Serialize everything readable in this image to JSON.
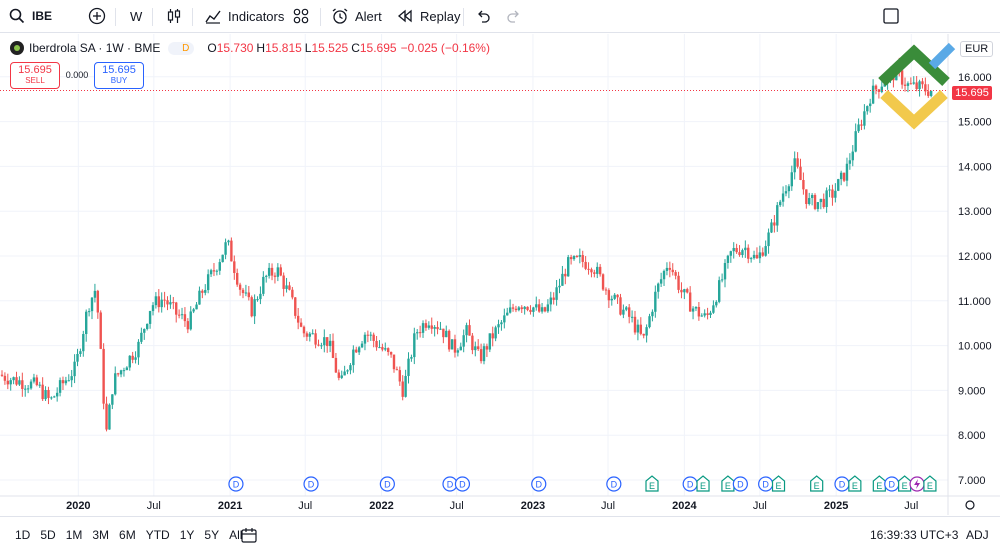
{
  "toolbar": {
    "symbol": "IBE",
    "interval": "W",
    "indicators": "Indicators",
    "alert": "Alert",
    "replay": "Replay"
  },
  "legend": {
    "name": "Iberdrola SA · 1W · BME",
    "badge": "D",
    "o_label": "O",
    "o": "15.730",
    "h_label": "H",
    "h": "15.815",
    "l_label": "L",
    "l": "15.525",
    "c_label": "C",
    "c": "15.695",
    "change": "−0.025 (−0.16%)"
  },
  "trade": {
    "sell_price": "15.695",
    "sell_label": "SELL",
    "spread": "0.000",
    "buy_price": "15.695",
    "buy_label": "BUY"
  },
  "currency": "EUR",
  "last_price_tag": "15.695",
  "bottom": {
    "ranges": [
      "1D",
      "5D",
      "1M",
      "3M",
      "6M",
      "YTD",
      "1Y",
      "5Y",
      "All"
    ],
    "clock": "16:39:33 UTC+3",
    "adj": "ADJ"
  },
  "colors": {
    "up": "#26a69a",
    "down": "#ef5350",
    "grid": "#f0f3fa",
    "dividend": "#2962ff",
    "earnings": "#089981",
    "split": "#9c27b0",
    "last_price": "#f23645"
  },
  "chart_data": {
    "type": "candlestick",
    "title": "Iberdrola SA · 1W · BME",
    "ylim": [
      7.0,
      16.45
    ],
    "yticks": [
      "7.000",
      "8.000",
      "9.000",
      "10.000",
      "11.000",
      "12.000",
      "13.000",
      "14.000",
      "15.000",
      "16.000"
    ],
    "xticks": [
      "2020",
      "Jul",
      "2021",
      "Jul",
      "2022",
      "Jul",
      "2023",
      "Jul",
      "2024",
      "Jul",
      "2025",
      "Jul"
    ],
    "last_price": 15.695,
    "price_keypoints": [
      [
        "2019-07",
        9.35
      ],
      [
        "2019-08",
        9.25
      ],
      [
        "2019-10",
        9.1
      ],
      [
        "2019-11",
        8.75
      ],
      [
        "2019-12",
        9.15
      ],
      [
        "2020-01",
        9.5
      ],
      [
        "2020-02",
        10.9
      ],
      [
        "2020-02-20",
        11.3
      ],
      [
        "2020-03-15",
        8.0
      ],
      [
        "2020-04",
        9.2
      ],
      [
        "2020-05",
        9.6
      ],
      [
        "2020-06",
        10.0
      ],
      [
        "2020-07",
        10.9
      ],
      [
        "2020-08",
        11.05
      ],
      [
        "2020-09",
        10.7
      ],
      [
        "2020-10",
        10.5
      ],
      [
        "2020-11",
        11.2
      ],
      [
        "2020-12",
        11.7
      ],
      [
        "2021-01",
        12.3
      ],
      [
        "2021-02",
        11.3
      ],
      [
        "2021-03",
        10.8
      ],
      [
        "2021-04",
        11.5
      ],
      [
        "2021-05",
        11.7
      ],
      [
        "2021-06",
        11.1
      ],
      [
        "2021-07",
        10.3
      ],
      [
        "2021-08",
        10.2
      ],
      [
        "2021-09",
        10.1
      ],
      [
        "2021-10",
        9.1
      ],
      [
        "2021-11",
        9.9
      ],
      [
        "2021-12",
        10.3
      ],
      [
        "2022-01",
        10.0
      ],
      [
        "2022-02",
        9.7
      ],
      [
        "2022-03",
        9.0
      ],
      [
        "2022-04",
        10.3
      ],
      [
        "2022-05",
        10.6
      ],
      [
        "2022-06",
        10.4
      ],
      [
        "2022-07",
        9.9
      ],
      [
        "2022-08",
        10.3
      ],
      [
        "2022-09",
        9.7
      ],
      [
        "2022-10",
        10.2
      ],
      [
        "2022-11",
        10.6
      ],
      [
        "2022-12",
        10.95
      ],
      [
        "2023-01",
        10.9
      ],
      [
        "2023-02",
        10.7
      ],
      [
        "2023-03",
        11.1
      ],
      [
        "2023-04",
        11.8
      ],
      [
        "2023-05",
        11.9
      ],
      [
        "2023-06",
        11.8
      ],
      [
        "2023-07",
        11.3
      ],
      [
        "2023-08",
        10.9
      ],
      [
        "2023-09",
        10.6
      ],
      [
        "2023-10",
        10.1
      ],
      [
        "2023-11",
        11.2
      ],
      [
        "2023-12",
        11.9
      ],
      [
        "2024-01",
        11.2
      ],
      [
        "2024-02",
        10.8
      ],
      [
        "2024-03",
        10.6
      ],
      [
        "2024-04",
        11.3
      ],
      [
        "2024-05",
        12.1
      ],
      [
        "2024-06",
        12.2
      ],
      [
        "2024-07",
        11.9
      ],
      [
        "2024-08",
        12.5
      ],
      [
        "2024-09",
        13.4
      ],
      [
        "2024-10",
        14.05
      ],
      [
        "2024-11",
        13.2
      ],
      [
        "2024-12",
        13.2
      ],
      [
        "2025-01",
        13.4
      ],
      [
        "2025-02",
        13.9
      ],
      [
        "2025-03",
        14.8
      ],
      [
        "2025-04",
        15.6
      ],
      [
        "2025-05",
        15.9
      ],
      [
        "2025-06",
        16.1
      ],
      [
        "2025-07",
        15.8
      ],
      [
        "2025-08",
        15.75
      ],
      [
        "2025-08-20",
        15.695
      ]
    ],
    "event_markers": [
      {
        "date": "2021-01",
        "type": "D"
      },
      {
        "date": "2021-07",
        "type": "D"
      },
      {
        "date": "2022-01",
        "type": "D"
      },
      {
        "date": "2022-06",
        "type": "D"
      },
      {
        "date": "2022-07",
        "type": "D"
      },
      {
        "date": "2023-01",
        "type": "D"
      },
      {
        "date": "2023-07",
        "type": "D"
      },
      {
        "date": "2023-10",
        "type": "E"
      },
      {
        "date": "2024-01",
        "type": "D"
      },
      {
        "date": "2024-02",
        "type": "E"
      },
      {
        "date": "2024-04",
        "type": "E"
      },
      {
        "date": "2024-05",
        "type": "D"
      },
      {
        "date": "2024-07",
        "type": "D"
      },
      {
        "date": "2024-08",
        "type": "E"
      },
      {
        "date": "2024-11",
        "type": "E"
      },
      {
        "date": "2025-01",
        "type": "D"
      },
      {
        "date": "2025-02",
        "type": "E"
      },
      {
        "date": "2025-04",
        "type": "E"
      },
      {
        "date": "2025-05",
        "type": "D"
      },
      {
        "date": "2025-06",
        "type": "E"
      },
      {
        "date": "2025-07",
        "type": "split"
      },
      {
        "date": "2025-08",
        "type": "E"
      }
    ]
  }
}
